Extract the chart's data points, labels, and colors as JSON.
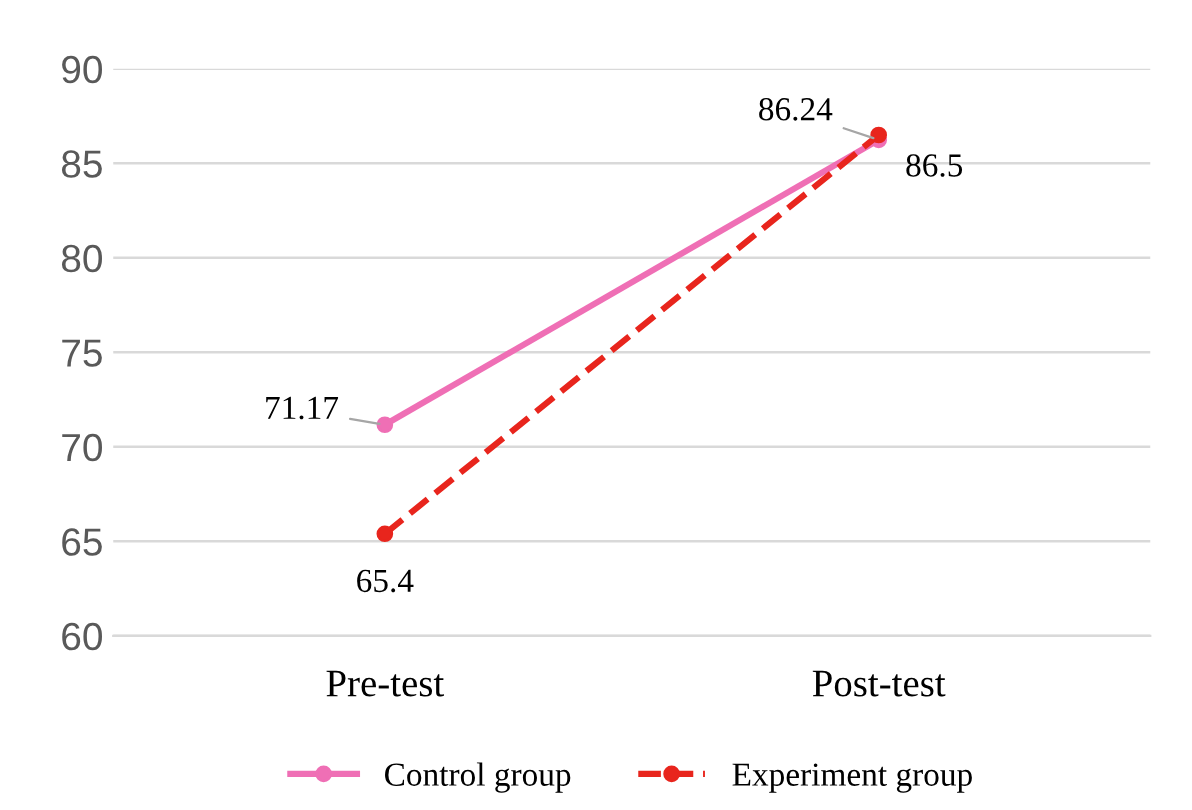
{
  "chart_data": {
    "type": "line",
    "categories": [
      "Pre-test",
      "Post-test"
    ],
    "series": [
      {
        "name": "Control group",
        "color": "#ef6fb5",
        "values": [
          71.17,
          86.24
        ],
        "line_style": "solid"
      },
      {
        "name": "Experiment group",
        "color": "#e8251d",
        "values": [
          65.4,
          86.5
        ],
        "line_style": "dashed"
      }
    ],
    "ylim": [
      60,
      90
    ],
    "yticks": [
      60,
      65,
      70,
      75,
      80,
      85,
      90
    ],
    "grid": "y",
    "legend": "bottom",
    "marker": "circle",
    "data_labels": true
  }
}
